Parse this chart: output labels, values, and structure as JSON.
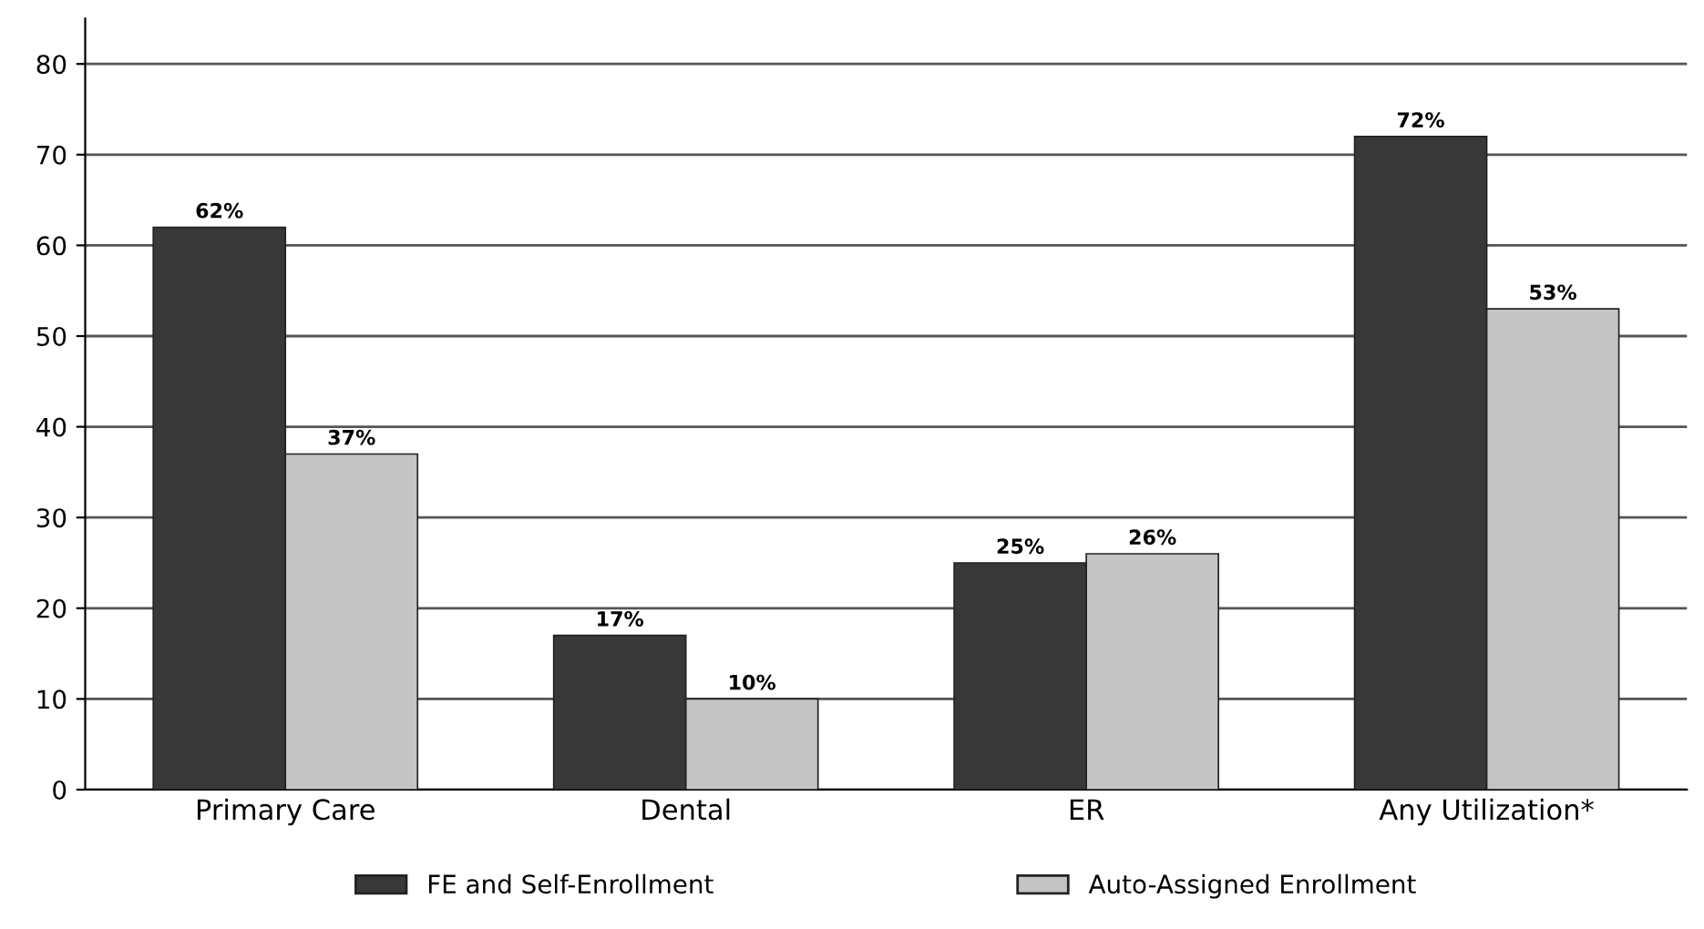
{
  "chart_data": {
    "type": "bar",
    "categories": [
      "Primary Care",
      "Dental",
      "ER",
      "Any Utilization*"
    ],
    "series": [
      {
        "name": "FE and Self-Enrollment",
        "color": "#383838",
        "values": [
          62,
          17,
          25,
          72
        ],
        "value_labels": [
          "62%",
          "17%",
          "25%",
          "72%"
        ]
      },
      {
        "name": "Auto-Assigned Enrollment",
        "color": "#c4c4c4",
        "values": [
          37,
          10,
          26,
          53
        ],
        "value_labels": [
          "37%",
          "10%",
          "26%",
          "53%"
        ]
      }
    ],
    "ylim": [
      0,
      85
    ],
    "yticks": [
      0,
      10,
      20,
      30,
      40,
      50,
      60,
      70,
      80
    ],
    "grid": "y",
    "legend": "bottom"
  }
}
